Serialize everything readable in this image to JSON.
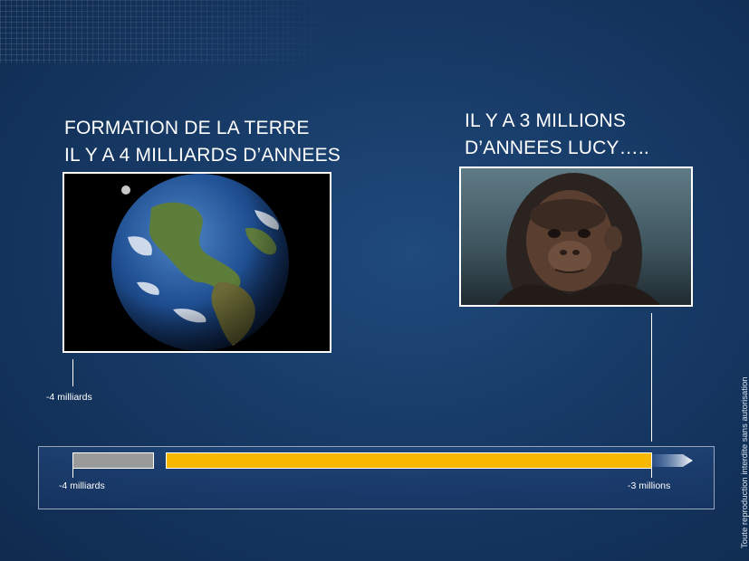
{
  "left_panel": {
    "title_line1": "FORMATION DE LA TERRE",
    "title_line2": "IL Y A 4 MILLIARDS D’ANNEES",
    "image_subject": "earth-photo"
  },
  "right_panel": {
    "title_line1": "IL Y A 3 MILLIONS",
    "title_line2": "D’ANNEES LUCY…..",
    "image_subject": "lucy-hominid-photo"
  },
  "timeline": {
    "marker_top_label": "-4 milliards",
    "start_label": "-4 milliards",
    "end_label": "-3 millions",
    "colors": {
      "past_segment": "#9a9a9a",
      "main_segment": "#f6b800",
      "arrow": "#dfe7f2"
    }
  },
  "copyright": "Toute reproduction interdite sans autorisation"
}
